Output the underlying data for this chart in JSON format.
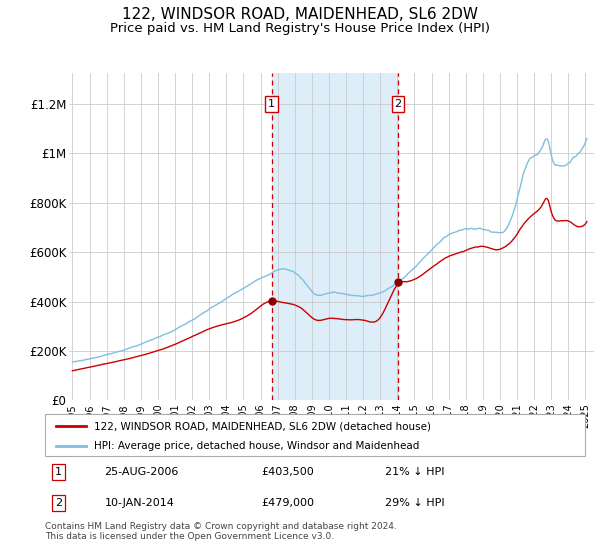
{
  "title": "122, WINDSOR ROAD, MAIDENHEAD, SL6 2DW",
  "subtitle": "Price paid vs. HM Land Registry's House Price Index (HPI)",
  "title_fontsize": 11,
  "subtitle_fontsize": 9.5,
  "hpi_color": "#7fbfdf",
  "price_color": "#cc0000",
  "dot_color": "#8b0000",
  "shaded_color": "#ddeef8",
  "legend_label_red": "122, WINDSOR ROAD, MAIDENHEAD, SL6 2DW (detached house)",
  "legend_label_blue": "HPI: Average price, detached house, Windsor and Maidenhead",
  "footnote": "Contains HM Land Registry data © Crown copyright and database right 2024.\nThis data is licensed under the Open Government Licence v3.0.",
  "purchase1_date": "25-AUG-2006",
  "purchase1_price": 403500,
  "purchase1_hpi_text": "21% ↓ HPI",
  "purchase1_x": 2006.65,
  "purchase2_date": "10-JAN-2014",
  "purchase2_price": 479000,
  "purchase2_hpi_text": "29% ↓ HPI",
  "purchase2_x": 2014.04,
  "ylim": [
    0,
    1300000
  ],
  "xlim_start": 1994.8,
  "xlim_end": 2025.5,
  "ytick_labels": [
    "£0",
    "£200K",
    "£400K",
    "£600K",
    "£800K",
    "£1M",
    "£1.2M"
  ],
  "ytick_values": [
    0,
    200000,
    400000,
    600000,
    800000,
    1000000,
    1200000
  ],
  "xtick_years": [
    1995,
    1996,
    1997,
    1998,
    1999,
    2000,
    2001,
    2002,
    2003,
    2004,
    2005,
    2006,
    2007,
    2008,
    2009,
    2010,
    2011,
    2012,
    2013,
    2014,
    2015,
    2016,
    2017,
    2018,
    2019,
    2020,
    2021,
    2022,
    2023,
    2024,
    2025
  ]
}
